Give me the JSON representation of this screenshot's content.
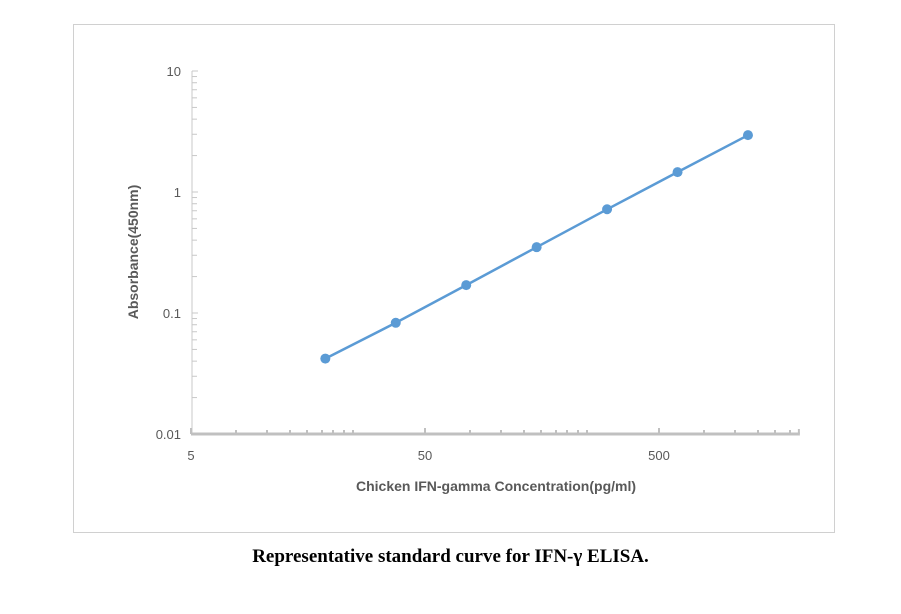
{
  "caption": "Representative standard curve for IFN-γ   ELISA.",
  "chart_data": {
    "type": "line",
    "title": "",
    "xlabel": "Chicken IFN-gamma Concentration(pg/ml)",
    "ylabel": "Absorbance(450nm)",
    "x_scale": "log",
    "y_scale": "log",
    "xlim": [
      5,
      2000
    ],
    "ylim": [
      0.01,
      10
    ],
    "x_tick_labels": [
      "5",
      "50",
      "500"
    ],
    "x_tick_values": [
      5,
      50,
      500
    ],
    "y_tick_labels": [
      "0.01",
      "0.1",
      "1",
      "10"
    ],
    "y_tick_values": [
      0.01,
      0.1,
      1,
      10
    ],
    "grid": false,
    "legend": "none",
    "series": [
      {
        "x": [
          18.75,
          37.5,
          75,
          150,
          300,
          600,
          1200
        ],
        "y": [
          0.042,
          0.083,
          0.17,
          0.35,
          0.72,
          1.46,
          2.95
        ],
        "color": "#5B9BD5",
        "markers": true
      }
    ]
  }
}
